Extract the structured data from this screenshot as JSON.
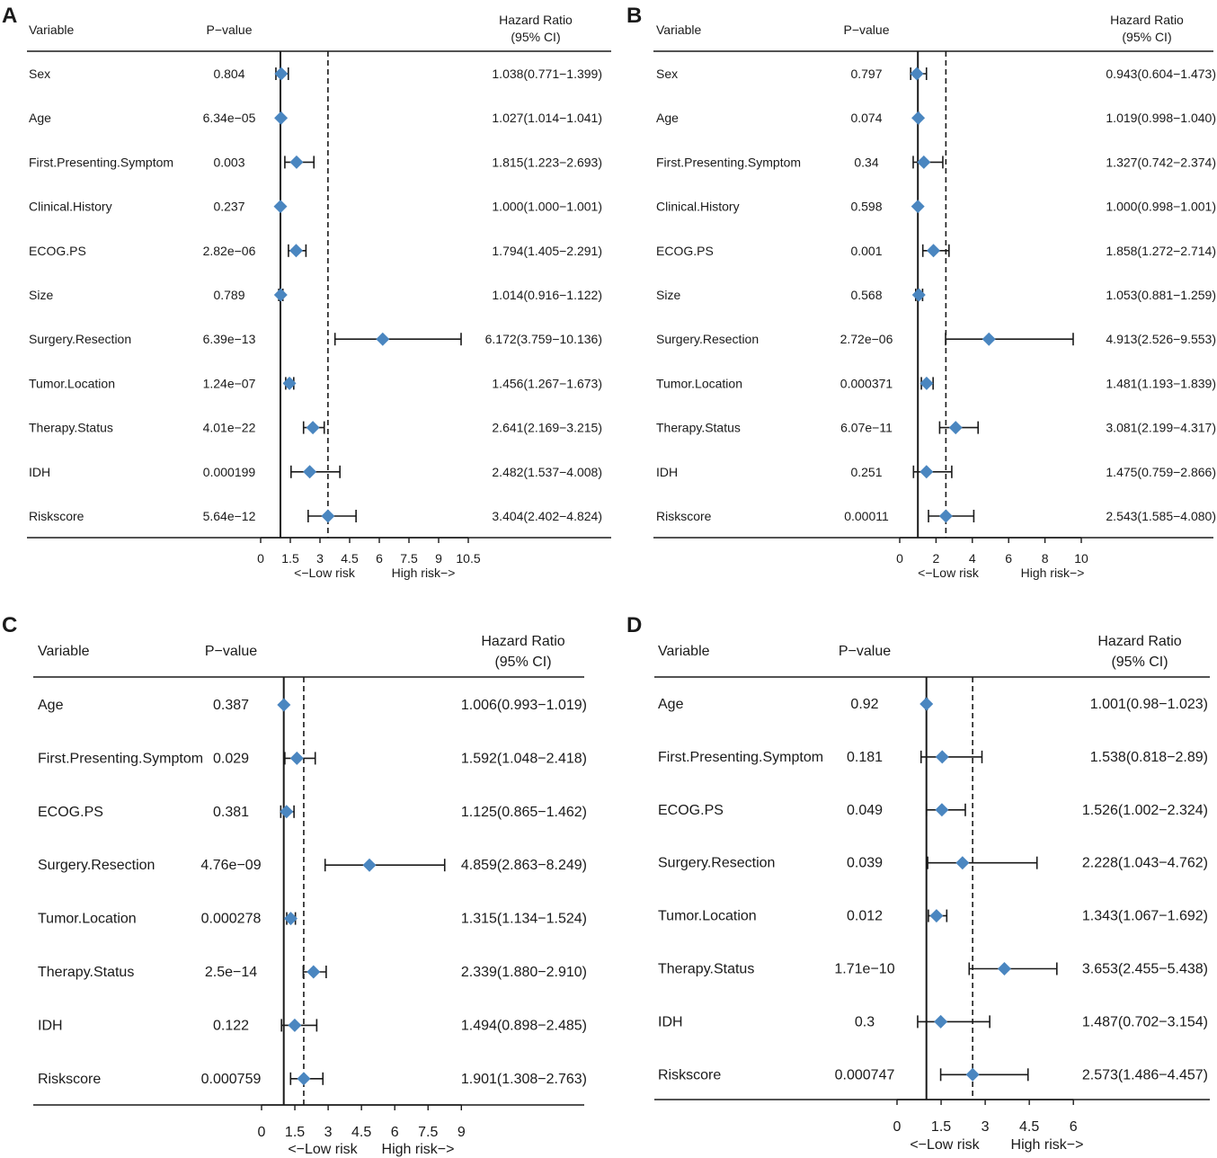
{
  "colors": {
    "marker": "#4a86c0",
    "line": "#1a1a1a",
    "text": "#1a1a1a"
  },
  "chart_data": [
    {
      "type": "forest",
      "panel_label": "A",
      "header": {
        "variable": "Variable",
        "pvalue": "P−value",
        "hr_line1": "Hazard Ratio",
        "hr_line2": "(95% CI)"
      },
      "axis": {
        "ticks": [
          0,
          1.5,
          3,
          4.5,
          6,
          7.5,
          9,
          10.5
        ],
        "tick_labels": [
          "0",
          "1.5",
          "3",
          "4.5",
          "6",
          "7.5",
          "9",
          "10.5"
        ],
        "low_label": "<−Low risk",
        "high_label": "High risk−>",
        "reference_value": 1,
        "dashed_value": 3.404
      },
      "rows": [
        {
          "variable": "Sex",
          "pvalue": "0.804",
          "hr": 1.038,
          "lo": 0.771,
          "hi": 1.399,
          "hr_text": "1.038(0.771−1.399)"
        },
        {
          "variable": "Age",
          "pvalue": "6.34e−05",
          "hr": 1.027,
          "lo": 1.014,
          "hi": 1.041,
          "hr_text": "1.027(1.014−1.041)"
        },
        {
          "variable": "First.Presenting.Symptom",
          "pvalue": "0.003",
          "hr": 1.815,
          "lo": 1.223,
          "hi": 2.693,
          "hr_text": "1.815(1.223−2.693)"
        },
        {
          "variable": "Clinical.History",
          "pvalue": "0.237",
          "hr": 1.0,
          "lo": 1.0,
          "hi": 1.001,
          "hr_text": "1.000(1.000−1.001)"
        },
        {
          "variable": "ECOG.PS",
          "pvalue": "2.82e−06",
          "hr": 1.794,
          "lo": 1.405,
          "hi": 2.291,
          "hr_text": "1.794(1.405−2.291)"
        },
        {
          "variable": "Size",
          "pvalue": "0.789",
          "hr": 1.014,
          "lo": 0.916,
          "hi": 1.122,
          "hr_text": "1.014(0.916−1.122)"
        },
        {
          "variable": "Surgery.Resection",
          "pvalue": "6.39e−13",
          "hr": 6.172,
          "lo": 3.759,
          "hi": 10.136,
          "hr_text": "6.172(3.759−10.136)"
        },
        {
          "variable": "Tumor.Location",
          "pvalue": "1.24e−07",
          "hr": 1.456,
          "lo": 1.267,
          "hi": 1.673,
          "hr_text": "1.456(1.267−1.673)"
        },
        {
          "variable": "Therapy.Status",
          "pvalue": "4.01e−22",
          "hr": 2.641,
          "lo": 2.169,
          "hi": 3.215,
          "hr_text": "2.641(2.169−3.215)"
        },
        {
          "variable": "IDH",
          "pvalue": "0.000199",
          "hr": 2.482,
          "lo": 1.537,
          "hi": 4.008,
          "hr_text": "2.482(1.537−4.008)"
        },
        {
          "variable": "Riskscore",
          "pvalue": "5.64e−12",
          "hr": 3.404,
          "lo": 2.402,
          "hi": 4.824,
          "hr_text": "3.404(2.402−4.824)"
        }
      ]
    },
    {
      "type": "forest",
      "panel_label": "B",
      "header": {
        "variable": "Variable",
        "pvalue": "P−value",
        "hr_line1": "Hazard Ratio",
        "hr_line2": "(95% CI)"
      },
      "axis": {
        "ticks": [
          0,
          2,
          4,
          6,
          8,
          10
        ],
        "tick_labels": [
          "0",
          "2",
          "4",
          "6",
          "8",
          "10"
        ],
        "low_label": "<−Low risk",
        "high_label": "High risk−>",
        "reference_value": 1,
        "dashed_value": 2.543
      },
      "rows": [
        {
          "variable": "Sex",
          "pvalue": "0.797",
          "hr": 0.943,
          "lo": 0.604,
          "hi": 1.473,
          "hr_text": "0.943(0.604−1.473)"
        },
        {
          "variable": "Age",
          "pvalue": "0.074",
          "hr": 1.019,
          "lo": 0.998,
          "hi": 1.04,
          "hr_text": "1.019(0.998−1.040)"
        },
        {
          "variable": "First.Presenting.Symptom",
          "pvalue": "0.34",
          "hr": 1.327,
          "lo": 0.742,
          "hi": 2.374,
          "hr_text": "1.327(0.742−2.374)"
        },
        {
          "variable": "Clinical.History",
          "pvalue": "0.598",
          "hr": 1.0,
          "lo": 0.998,
          "hi": 1.001,
          "hr_text": "1.000(0.998−1.001)"
        },
        {
          "variable": "ECOG.PS",
          "pvalue": "0.001",
          "hr": 1.858,
          "lo": 1.272,
          "hi": 2.714,
          "hr_text": "1.858(1.272−2.714)"
        },
        {
          "variable": "Size",
          "pvalue": "0.568",
          "hr": 1.053,
          "lo": 0.881,
          "hi": 1.259,
          "hr_text": "1.053(0.881−1.259)"
        },
        {
          "variable": "Surgery.Resection",
          "pvalue": "2.72e−06",
          "hr": 4.913,
          "lo": 2.526,
          "hi": 9.553,
          "hr_text": "4.913(2.526−9.553)"
        },
        {
          "variable": "Tumor.Location",
          "pvalue": "0.000371",
          "hr": 1.481,
          "lo": 1.193,
          "hi": 1.839,
          "hr_text": "1.481(1.193−1.839)"
        },
        {
          "variable": "Therapy.Status",
          "pvalue": "6.07e−11",
          "hr": 3.081,
          "lo": 2.199,
          "hi": 4.317,
          "hr_text": "3.081(2.199−4.317)"
        },
        {
          "variable": "IDH",
          "pvalue": "0.251",
          "hr": 1.475,
          "lo": 0.759,
          "hi": 2.866,
          "hr_text": "1.475(0.759−2.866)"
        },
        {
          "variable": "Riskscore",
          "pvalue": "0.00011",
          "hr": 2.543,
          "lo": 1.585,
          "hi": 4.08,
          "hr_text": "2.543(1.585−4.080)"
        }
      ]
    },
    {
      "type": "forest",
      "panel_label": "C",
      "header": {
        "variable": "Variable",
        "pvalue": "P−value",
        "hr_line1": "Hazard Ratio",
        "hr_line2": "(95% CI)"
      },
      "axis": {
        "ticks": [
          0,
          1.5,
          3,
          4.5,
          6,
          7.5,
          9
        ],
        "tick_labels": [
          "0",
          "1.5",
          "3",
          "4.5",
          "6",
          "7.5",
          "9"
        ],
        "low_label": "<−Low risk",
        "high_label": "High risk−>",
        "reference_value": 1,
        "dashed_value": 1.901
      },
      "rows": [
        {
          "variable": "Age",
          "pvalue": "0.387",
          "hr": 1.006,
          "lo": 0.993,
          "hi": 1.019,
          "hr_text": "1.006(0.993−1.019)"
        },
        {
          "variable": "First.Presenting.Symptom",
          "pvalue": "0.029",
          "hr": 1.592,
          "lo": 1.048,
          "hi": 2.418,
          "hr_text": "1.592(1.048−2.418)"
        },
        {
          "variable": "ECOG.PS",
          "pvalue": "0.381",
          "hr": 1.125,
          "lo": 0.865,
          "hi": 1.462,
          "hr_text": "1.125(0.865−1.462)"
        },
        {
          "variable": "Surgery.Resection",
          "pvalue": "4.76e−09",
          "hr": 4.859,
          "lo": 2.863,
          "hi": 8.249,
          "hr_text": "4.859(2.863−8.249)"
        },
        {
          "variable": "Tumor.Location",
          "pvalue": "0.000278",
          "hr": 1.315,
          "lo": 1.134,
          "hi": 1.524,
          "hr_text": "1.315(1.134−1.524)"
        },
        {
          "variable": "Therapy.Status",
          "pvalue": "2.5e−14",
          "hr": 2.339,
          "lo": 1.88,
          "hi": 2.91,
          "hr_text": "2.339(1.880−2.910)"
        },
        {
          "variable": "IDH",
          "pvalue": "0.122",
          "hr": 1.494,
          "lo": 0.898,
          "hi": 2.485,
          "hr_text": "1.494(0.898−2.485)"
        },
        {
          "variable": "Riskscore",
          "pvalue": "0.000759",
          "hr": 1.901,
          "lo": 1.308,
          "hi": 2.763,
          "hr_text": "1.901(1.308−2.763)"
        }
      ]
    },
    {
      "type": "forest",
      "panel_label": "D",
      "header": {
        "variable": "Variable",
        "pvalue": "P−value",
        "hr_line1": "Hazard Ratio",
        "hr_line2": "(95% CI)"
      },
      "axis": {
        "ticks": [
          0,
          1.5,
          3,
          4.5,
          6
        ],
        "tick_labels": [
          "0",
          "1.5",
          "3",
          "4.5",
          "6"
        ],
        "low_label": "<−Low risk",
        "high_label": "High risk−>",
        "reference_value": 1,
        "dashed_value": 2.573
      },
      "rows": [
        {
          "variable": "Age",
          "pvalue": "0.92",
          "hr": 1.001,
          "lo": 0.98,
          "hi": 1.023,
          "hr_text": "1.001(0.98−1.023)"
        },
        {
          "variable": "First.Presenting.Symptom",
          "pvalue": "0.181",
          "hr": 1.538,
          "lo": 0.818,
          "hi": 2.89,
          "hr_text": "1.538(0.818−2.89)"
        },
        {
          "variable": "ECOG.PS",
          "pvalue": "0.049",
          "hr": 1.526,
          "lo": 1.002,
          "hi": 2.324,
          "hr_text": "1.526(1.002−2.324)"
        },
        {
          "variable": "Surgery.Resection",
          "pvalue": "0.039",
          "hr": 2.228,
          "lo": 1.043,
          "hi": 4.762,
          "hr_text": "2.228(1.043−4.762)"
        },
        {
          "variable": "Tumor.Location",
          "pvalue": "0.012",
          "hr": 1.343,
          "lo": 1.067,
          "hi": 1.692,
          "hr_text": "1.343(1.067−1.692)"
        },
        {
          "variable": "Therapy.Status",
          "pvalue": "1.71e−10",
          "hr": 3.653,
          "lo": 2.455,
          "hi": 5.438,
          "hr_text": "3.653(2.455−5.438)"
        },
        {
          "variable": "IDH",
          "pvalue": "0.3",
          "hr": 1.487,
          "lo": 0.702,
          "hi": 3.154,
          "hr_text": "1.487(0.702−3.154)"
        },
        {
          "variable": "Riskscore",
          "pvalue": "0.000747",
          "hr": 2.573,
          "lo": 1.486,
          "hi": 4.457,
          "hr_text": "2.573(1.486−4.457)"
        }
      ]
    }
  ]
}
